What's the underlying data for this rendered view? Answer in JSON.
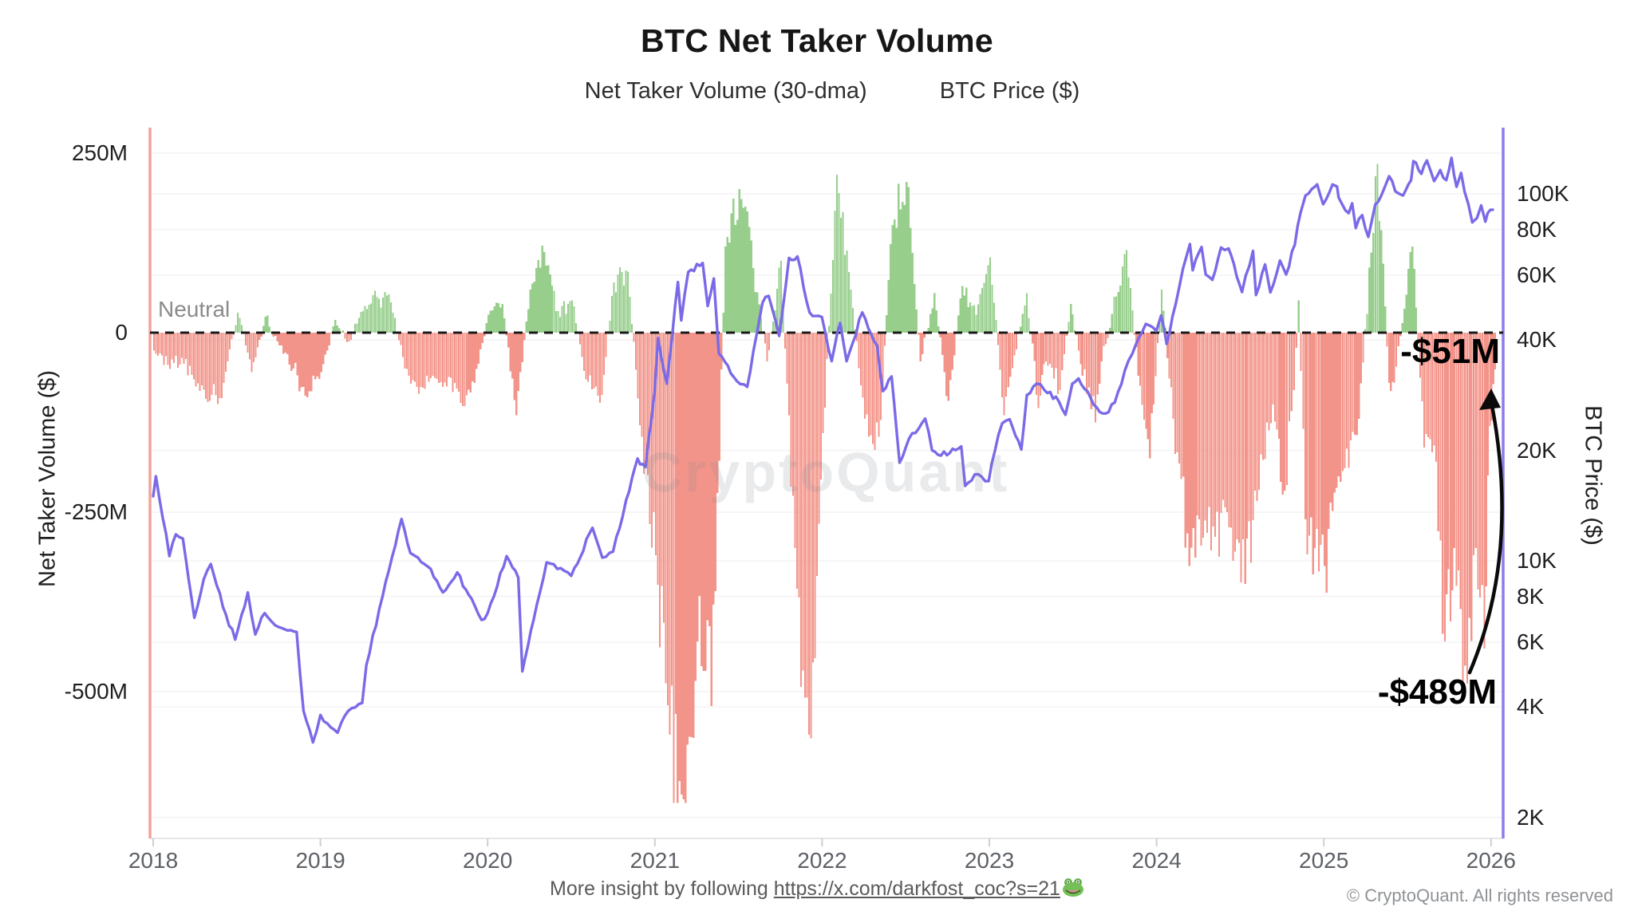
{
  "title": "BTC Net Taker Volume",
  "legend": [
    {
      "label": "Net Taker Volume (30-dma)",
      "swatch": "dot",
      "color": "#8FCB8C"
    },
    {
      "label": "BTC Price ($)",
      "swatch": "line",
      "color": "#7A6AE8"
    }
  ],
  "axes": {
    "left": {
      "title": "Net Taker Volume ($)",
      "ticks": [
        "250M",
        "0",
        "-250M",
        "-500M"
      ]
    },
    "right": {
      "title": "BTC Price ($)",
      "ticks": [
        "100K",
        "80K",
        "60K",
        "40K",
        "20K",
        "10K",
        "8K",
        "6K",
        "4K",
        "2K"
      ]
    },
    "x": {
      "ticks": [
        "2018",
        "2019",
        "2020",
        "2021",
        "2022",
        "2023",
        "2024",
        "2025",
        "2026"
      ]
    }
  },
  "neutral_label": "Neutral",
  "watermark": "CryptoQuant",
  "annotations": {
    "latest": "-$51M",
    "extreme": "-$489M"
  },
  "footer": {
    "prefix": "More insight by following ",
    "link_text": "https://x.com/darkfost_coc?s=21",
    "link_href": "https://x.com/darkfost_coc?s=21",
    "emoji": "frog-emoji",
    "copyright": "© CryptoQuant. All rights reserved"
  },
  "colors": {
    "bar_positive": "#97CE8C",
    "bar_negative": "#F3948A",
    "price_line": "#7A6AE8",
    "left_axis_line": "#F2A49C",
    "right_axis_line": "#8B7CEC",
    "zero_line": "#1a1a1a",
    "gridline": "#f4f4f4",
    "arrow": "#0a0a0a"
  },
  "chart_data": {
    "type": "combo",
    "x_range": [
      2018,
      2026
    ],
    "grid": "faint-horizontal",
    "legend_position": "top-center",
    "baseline": {
      "label": "Neutral",
      "value": 0
    },
    "left_axis": {
      "label": "Net Taker Volume ($)",
      "unit": "USD millions",
      "range": [
        -660,
        250
      ],
      "scale": "linear"
    },
    "right_axis": {
      "label": "BTC Price ($)",
      "unit": "USD",
      "range": [
        2000,
        150000
      ],
      "scale": "log"
    },
    "annotations": [
      {
        "text": "-$51M",
        "meaning": "latest 30-dma net taker volume",
        "x": "2026-01",
        "v": -51
      },
      {
        "text": "-$489M",
        "meaning": "recent extreme low",
        "x": "2025-11",
        "v": -489
      }
    ],
    "series": [
      {
        "name": "Net Taker Volume (30-dma)",
        "type": "bar",
        "unit": "USD millions",
        "color_positive": "#97CE8C",
        "color_negative": "#F3948A",
        "values": [
          [
            "2018-01",
            -25
          ],
          [
            "2018-02",
            -45
          ],
          [
            "2018-03",
            -35
          ],
          [
            "2018-04",
            -75
          ],
          [
            "2018-05",
            -95
          ],
          [
            "2018-06",
            -70
          ],
          [
            "2018-07",
            28
          ],
          [
            "2018-08",
            -55
          ],
          [
            "2018-09",
            22
          ],
          [
            "2018-10",
            -18
          ],
          [
            "2018-11",
            -50
          ],
          [
            "2018-12",
            -90
          ],
          [
            "2019-01",
            -55
          ],
          [
            "2019-02",
            18
          ],
          [
            "2019-03",
            -12
          ],
          [
            "2019-04",
            30
          ],
          [
            "2019-05",
            50
          ],
          [
            "2019-06",
            42
          ],
          [
            "2019-07",
            -50
          ],
          [
            "2019-08",
            -85
          ],
          [
            "2019-09",
            -60
          ],
          [
            "2019-10",
            -75
          ],
          [
            "2019-11",
            -98
          ],
          [
            "2019-12",
            -70
          ],
          [
            "2020-01",
            25
          ],
          [
            "2020-02",
            40
          ],
          [
            "2020-03",
            -115
          ],
          [
            "2020-04",
            60
          ],
          [
            "2020-05",
            112
          ],
          [
            "2020-06",
            30
          ],
          [
            "2020-07",
            45
          ],
          [
            "2020-08",
            -65
          ],
          [
            "2020-09",
            -98
          ],
          [
            "2020-10",
            70
          ],
          [
            "2020-11",
            85
          ],
          [
            "2020-12",
            -145
          ],
          [
            "2021-01",
            -310
          ],
          [
            "2021-02",
            -560
          ],
          [
            "2021-03",
            -650
          ],
          [
            "2021-04",
            -430
          ],
          [
            "2021-05",
            -520
          ],
          [
            "2021-06",
            120
          ],
          [
            "2021-07",
            200
          ],
          [
            "2021-08",
            90
          ],
          [
            "2021-09",
            -40
          ],
          [
            "2021-10",
            100
          ],
          [
            "2021-11",
            -300
          ],
          [
            "2021-12",
            -560
          ],
          [
            "2022-01",
            -140
          ],
          [
            "2022-02",
            220
          ],
          [
            "2022-03",
            60
          ],
          [
            "2022-04",
            -120
          ],
          [
            "2022-05",
            -145
          ],
          [
            "2022-06",
            150
          ],
          [
            "2022-07",
            210
          ],
          [
            "2022-08",
            -40
          ],
          [
            "2022-09",
            55
          ],
          [
            "2022-10",
            -95
          ],
          [
            "2022-11",
            65
          ],
          [
            "2022-12",
            25
          ],
          [
            "2023-01",
            105
          ],
          [
            "2023-02",
            -115
          ],
          [
            "2023-03-20",
            55
          ],
          [
            "2023-04-15",
            -105
          ],
          [
            "2023-05",
            -40
          ],
          [
            "2023-06",
            -80
          ],
          [
            "2023-06-25",
            40
          ],
          [
            "2023-07-20",
            -60
          ],
          [
            "2023-08-18",
            -125
          ],
          [
            "2023-09",
            -40
          ],
          [
            "2023-10-25",
            115
          ],
          [
            "2023-11-20",
            -60
          ],
          [
            "2023-12-15",
            -175
          ],
          [
            "2024-01-10",
            60
          ],
          [
            "2024-02-05",
            -120
          ],
          [
            "2024-03-10",
            -325
          ],
          [
            "2024-04",
            -260
          ],
          [
            "2024-05",
            -270
          ],
          [
            "2024-06",
            -250
          ],
          [
            "2024-07-10",
            -350
          ],
          [
            "2024-08",
            -220
          ],
          [
            "2024-09-10",
            -100
          ],
          [
            "2024-10-05",
            -220
          ],
          [
            "2024-10-25",
            -80
          ],
          [
            "2024-11-05",
            45
          ],
          [
            "2024-11-20",
            -260
          ],
          [
            "2024-12-10",
            -300
          ],
          [
            "2025-01",
            -325
          ],
          [
            "2025-02",
            -200
          ],
          [
            "2025-03-15",
            -120
          ],
          [
            "2025-04-25",
            235
          ],
          [
            "2025-05-20",
            -70
          ],
          [
            "2025-06",
            -70
          ],
          [
            "2025-07-10",
            120
          ],
          [
            "2025-08-05",
            -160
          ],
          [
            "2025-09-01",
            -180
          ],
          [
            "2025-09-20",
            -430
          ],
          [
            "2025-10-10",
            -300
          ],
          [
            "2025-11-08",
            -489
          ],
          [
            "2025-11-22",
            -310
          ],
          [
            "2025-12-15",
            -440
          ],
          [
            "2025-12-27",
            -130
          ],
          [
            "2026-01-08",
            -51
          ]
        ]
      },
      {
        "name": "BTC Price ($)",
        "type": "line",
        "unit": "USD",
        "scale": "log",
        "color": "#7A6AE8",
        "values": [
          [
            "2018-01-01",
            15000
          ],
          [
            "2018-01-07",
            17000
          ],
          [
            "2018-02-06",
            10300
          ],
          [
            "2018-02-20",
            11800
          ],
          [
            "2018-03-05",
            11500
          ],
          [
            "2018-03-30",
            7000
          ],
          [
            "2018-04-20",
            8900
          ],
          [
            "2018-05-05",
            9800
          ],
          [
            "2018-06-01",
            7500
          ],
          [
            "2018-06-28",
            6100
          ],
          [
            "2018-07-25",
            8200
          ],
          [
            "2018-08-11",
            6300
          ],
          [
            "2018-09-01",
            7200
          ],
          [
            "2018-10-01",
            6600
          ],
          [
            "2018-11-10",
            6400
          ],
          [
            "2018-11-25",
            3900
          ],
          [
            "2018-12-15",
            3200
          ],
          [
            "2019-01-01",
            3800
          ],
          [
            "2019-02-08",
            3400
          ],
          [
            "2019-03-01",
            3900
          ],
          [
            "2019-04-01",
            4100
          ],
          [
            "2019-04-10",
            5200
          ],
          [
            "2019-05-15",
            8000
          ],
          [
            "2019-06-26",
            13000
          ],
          [
            "2019-07-15",
            10500
          ],
          [
            "2019-08-01",
            10200
          ],
          [
            "2019-08-29",
            9500
          ],
          [
            "2019-09-25",
            8200
          ],
          [
            "2019-10-26",
            9300
          ],
          [
            "2019-11-20",
            8100
          ],
          [
            "2019-12-18",
            6900
          ],
          [
            "2020-01-01",
            7200
          ],
          [
            "2020-02-12",
            10300
          ],
          [
            "2020-03-07",
            9000
          ],
          [
            "2020-03-16",
            5000
          ],
          [
            "2020-04-10",
            6900
          ],
          [
            "2020-05-08",
            9900
          ],
          [
            "2020-06-01",
            9500
          ],
          [
            "2020-07-01",
            9100
          ],
          [
            "2020-08-17",
            12300
          ],
          [
            "2020-09-08",
            10200
          ],
          [
            "2020-10-01",
            10600
          ],
          [
            "2020-11-06",
            15500
          ],
          [
            "2020-11-24",
            19000
          ],
          [
            "2020-12-11",
            18000
          ],
          [
            "2020-12-31",
            29000
          ],
          [
            "2021-01-08",
            40500
          ],
          [
            "2021-01-27",
            30400
          ],
          [
            "2021-02-21",
            57500
          ],
          [
            "2021-02-28",
            45200
          ],
          [
            "2021-03-13",
            61200
          ],
          [
            "2021-04-14",
            64800
          ],
          [
            "2021-04-25",
            49500
          ],
          [
            "2021-05-08",
            58800
          ],
          [
            "2021-05-19",
            36700
          ],
          [
            "2021-06-21",
            31700
          ],
          [
            "2021-07-20",
            29800
          ],
          [
            "2021-08-23",
            50500
          ],
          [
            "2021-09-06",
            52700
          ],
          [
            "2021-09-29",
            41000
          ],
          [
            "2021-10-20",
            66900
          ],
          [
            "2021-11-08",
            67500
          ],
          [
            "2021-12-04",
            47500
          ],
          [
            "2021-12-31",
            46200
          ],
          [
            "2022-01-22",
            35000
          ],
          [
            "2022-02-10",
            44500
          ],
          [
            "2022-02-24",
            35000
          ],
          [
            "2022-03-28",
            47500
          ],
          [
            "2022-04-30",
            38600
          ],
          [
            "2022-05-12",
            29000
          ],
          [
            "2022-05-31",
            31800
          ],
          [
            "2022-06-18",
            18500
          ],
          [
            "2022-07-08",
            21500
          ],
          [
            "2022-08-13",
            24400
          ],
          [
            "2022-08-28",
            20000
          ],
          [
            "2022-09-30",
            19400
          ],
          [
            "2022-10-31",
            20500
          ],
          [
            "2022-11-09",
            16000
          ],
          [
            "2022-11-30",
            17200
          ],
          [
            "2022-12-30",
            16500
          ],
          [
            "2023-01-13",
            19900
          ],
          [
            "2023-01-29",
            23700
          ],
          [
            "2023-02-15",
            24300
          ],
          [
            "2023-03-10",
            20100
          ],
          [
            "2023-03-22",
            28300
          ],
          [
            "2023-04-13",
            30400
          ],
          [
            "2023-04-30",
            29200
          ],
          [
            "2023-05-31",
            27200
          ],
          [
            "2023-06-15",
            25000
          ],
          [
            "2023-06-30",
            30400
          ],
          [
            "2023-07-13",
            31400
          ],
          [
            "2023-08-16",
            26600
          ],
          [
            "2023-09-11",
            25200
          ],
          [
            "2023-10-01",
            27000
          ],
          [
            "2023-10-23",
            33000
          ],
          [
            "2023-11-09",
            36700
          ],
          [
            "2023-12-08",
            44200
          ],
          [
            "2023-12-31",
            42300
          ],
          [
            "2024-01-11",
            46600
          ],
          [
            "2024-01-23",
            39000
          ],
          [
            "2024-02-12",
            49900
          ],
          [
            "2024-02-28",
            62400
          ],
          [
            "2024-03-13",
            73000
          ],
          [
            "2024-03-19",
            61900
          ],
          [
            "2024-04-08",
            71600
          ],
          [
            "2024-04-17",
            60300
          ],
          [
            "2024-05-01",
            58300
          ],
          [
            "2024-05-20",
            71400
          ],
          [
            "2024-06-06",
            71000
          ],
          [
            "2024-06-24",
            59500
          ],
          [
            "2024-07-05",
            54000
          ],
          [
            "2024-07-29",
            69900
          ],
          [
            "2024-08-05",
            53000
          ],
          [
            "2024-08-25",
            64200
          ],
          [
            "2024-09-06",
            53900
          ],
          [
            "2024-09-27",
            65800
          ],
          [
            "2024-10-10",
            60300
          ],
          [
            "2024-10-29",
            72700
          ],
          [
            "2024-11-11",
            88700
          ],
          [
            "2024-11-22",
            99000
          ],
          [
            "2024-12-05",
            103000
          ],
          [
            "2024-12-17",
            106100
          ],
          [
            "2024-12-30",
            93700
          ],
          [
            "2025-01-20",
            106100
          ],
          [
            "2025-01-30",
            104700
          ],
          [
            "2025-02-03",
            97700
          ],
          [
            "2025-02-25",
            88600
          ],
          [
            "2025-03-02",
            94200
          ],
          [
            "2025-03-10",
            80700
          ],
          [
            "2025-03-24",
            87500
          ],
          [
            "2025-04-07",
            76300
          ],
          [
            "2025-04-22",
            93400
          ],
          [
            "2025-05-12",
            104100
          ],
          [
            "2025-05-22",
            111700
          ],
          [
            "2025-06-05",
            101600
          ],
          [
            "2025-06-22",
            99000
          ],
          [
            "2025-07-09",
            108900
          ],
          [
            "2025-07-14",
            122800
          ],
          [
            "2025-08-01",
            113400
          ],
          [
            "2025-08-13",
            123300
          ],
          [
            "2025-08-29",
            108400
          ],
          [
            "2025-09-12",
            116100
          ],
          [
            "2025-09-25",
            109000
          ],
          [
            "2025-10-06",
            125300
          ],
          [
            "2025-10-17",
            104500
          ],
          [
            "2025-10-27",
            114000
          ],
          [
            "2025-11-04",
            101500
          ],
          [
            "2025-11-21",
            83600
          ],
          [
            "2025-12-01",
            86000
          ],
          [
            "2025-12-10",
            93000
          ],
          [
            "2025-12-19",
            84000
          ],
          [
            "2025-12-24",
            88500
          ],
          [
            "2026-01-05",
            90500
          ]
        ]
      }
    ]
  }
}
